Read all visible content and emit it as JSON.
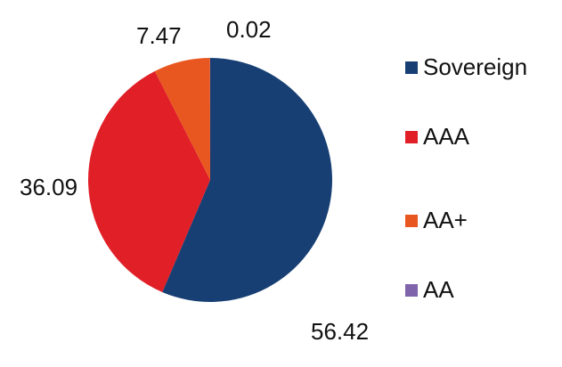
{
  "chart_data": {
    "type": "pie",
    "slices": [
      {
        "name": "Sovereign",
        "value": 56.42,
        "color": "#173f73",
        "label": "56.42"
      },
      {
        "name": "AAA",
        "value": 36.09,
        "color": "#e01f27",
        "label": "36.09"
      },
      {
        "name": "AA+",
        "value": 7.47,
        "color": "#e95720",
        "label": "7.47"
      },
      {
        "name": "AA",
        "value": 0.02,
        "color": "#7f63ab",
        "label": "0.02"
      }
    ],
    "start_angle_deg": 0,
    "direction": "clockwise",
    "legend_position": "right"
  }
}
